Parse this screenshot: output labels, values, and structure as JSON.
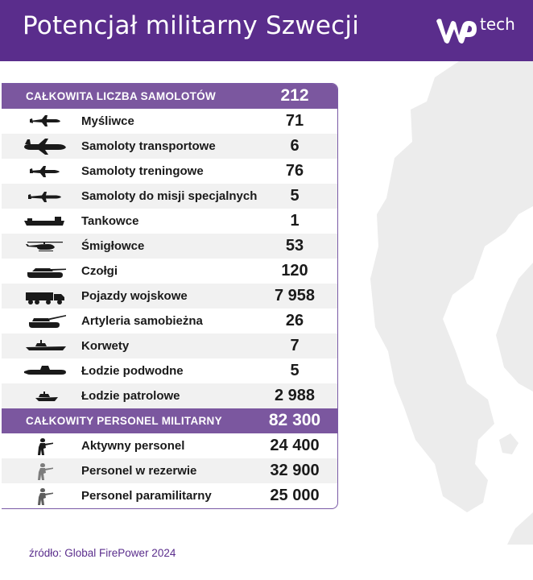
{
  "header": {
    "title": "Potencjał militarny Szwecji",
    "logo_text": "tech"
  },
  "colors": {
    "brand": "#5a2d8c",
    "section": "#7b579f",
    "row_alt": "#f1f1f1",
    "map": "#ececec"
  },
  "chart_data": {
    "type": "table",
    "sections": [
      {
        "label": "CAŁKOWITA LICZBA SAMOLOTÓW",
        "value": "212",
        "rows": [
          {
            "label": "Myśliwce",
            "value": "71",
            "icon": "fighter-jet-icon"
          },
          {
            "label": "Samoloty transportowe",
            "value": "6",
            "icon": "transport-plane-icon"
          },
          {
            "label": "Samoloty treningowe",
            "value": "76",
            "icon": "trainer-jet-icon"
          },
          {
            "label": "Samoloty do misji specjalnych",
            "value": "5",
            "icon": "special-mission-plane-icon"
          },
          {
            "label": "Tankowce",
            "value": "1",
            "icon": "tanker-ship-icon"
          },
          {
            "label": "Śmigłowce",
            "value": "53",
            "icon": "helicopter-icon"
          },
          {
            "label": "Czołgi",
            "value": "120",
            "icon": "tank-icon"
          },
          {
            "label": "Pojazdy wojskowe",
            "value": "7 958",
            "icon": "military-truck-icon"
          },
          {
            "label": "Artyleria samobieżna",
            "value": "26",
            "icon": "self-propelled-artillery-icon"
          },
          {
            "label": "Korwety",
            "value": "7",
            "icon": "corvette-icon"
          },
          {
            "label": "Łodzie podwodne",
            "value": "5",
            "icon": "submarine-icon"
          },
          {
            "label": "Łodzie patrolowe",
            "value": "2 988",
            "icon": "patrol-boat-icon"
          }
        ]
      },
      {
        "label": "CAŁKOWITY PERSONEL MILITARNY",
        "value": "82 300",
        "rows": [
          {
            "label": "Aktywny personel",
            "value": "24 400",
            "icon": "active-soldier-icon"
          },
          {
            "label": "Personel w rezerwie",
            "value": "32 900",
            "icon": "reserve-soldier-icon"
          },
          {
            "label": "Personel paramilitarny",
            "value": "25 000",
            "icon": "paramilitary-soldier-icon"
          }
        ]
      }
    ]
  },
  "footer": {
    "source": "źródło: Global FirePower 2024"
  }
}
